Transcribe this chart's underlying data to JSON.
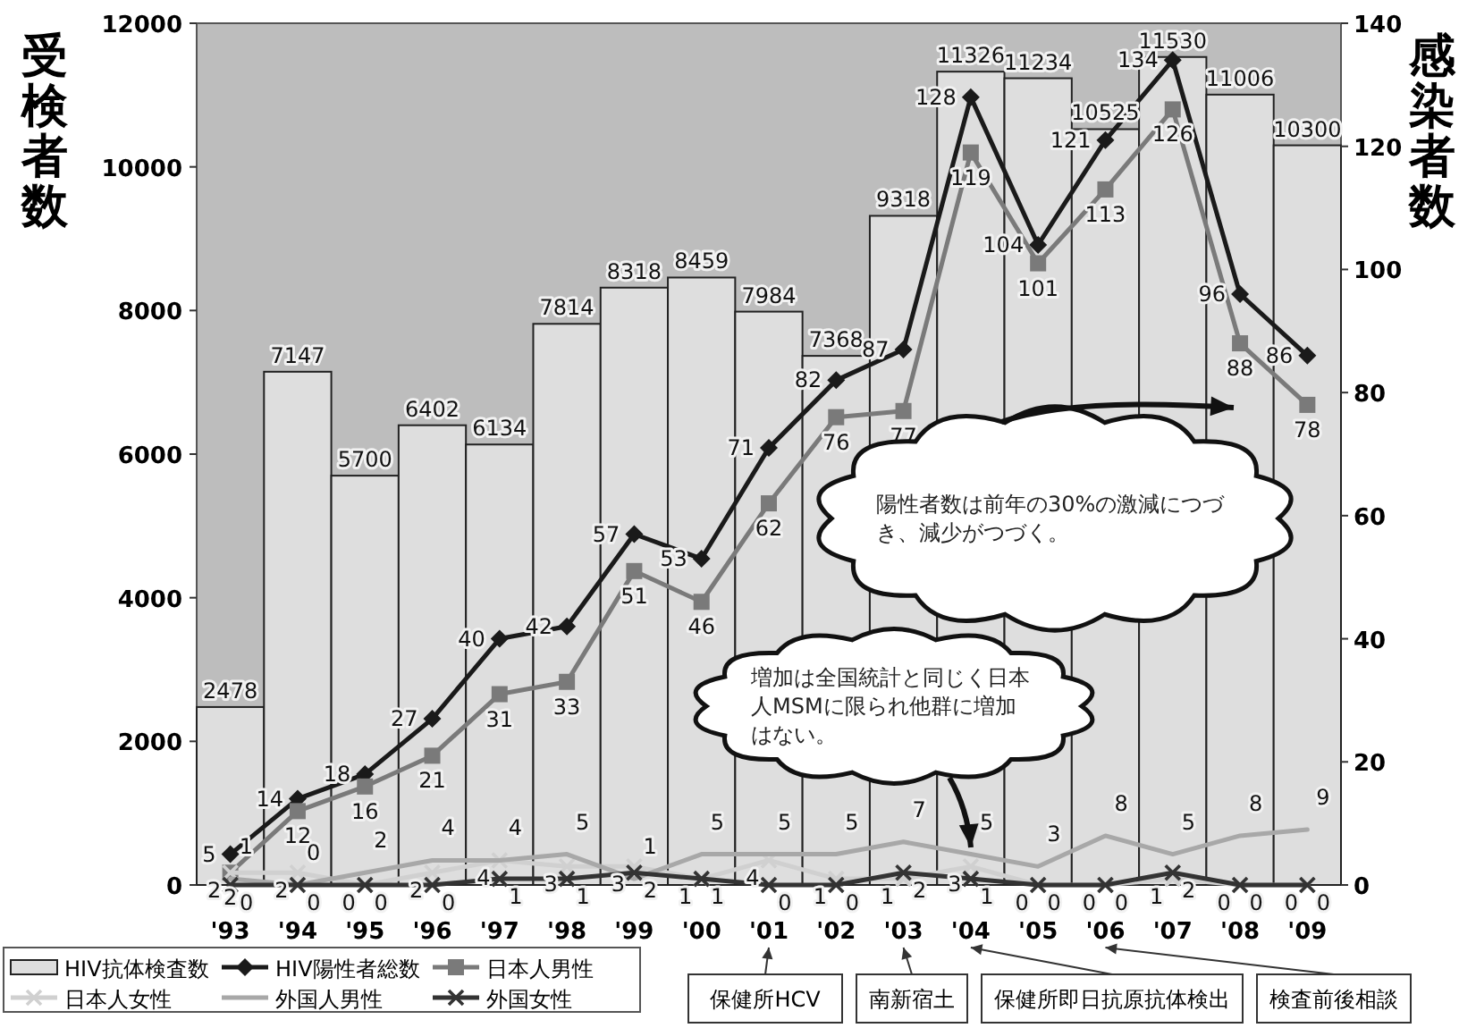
{
  "chart_data": {
    "type": "bar",
    "categories": [
      "'93",
      "'94",
      "'95",
      "'96",
      "'97",
      "'98",
      "'99",
      "'00",
      "'01",
      "'02",
      "'03",
      "'04",
      "'05",
      "'06",
      "'07",
      "'08",
      "'09"
    ],
    "ylabel": "受検者数",
    "y2label": "感染者数",
    "ylim": [
      0,
      12000
    ],
    "yticks": [
      0,
      2000,
      4000,
      6000,
      8000,
      10000,
      12000
    ],
    "y2lim": [
      0,
      140
    ],
    "y2ticks": [
      0,
      20,
      40,
      60,
      80,
      100,
      120,
      140
    ],
    "grid": false,
    "legend": "bottom left",
    "data_labels": true,
    "line_style": "solid",
    "series": [
      {
        "name": "HIV抗体検査数",
        "color": "#dedede",
        "values": [
          2478,
          7147,
          5700,
          6402,
          6134,
          7814,
          8318,
          8459,
          7984,
          7368,
          9318,
          11326,
          11234,
          10525,
          11530,
          11006,
          10300
        ]
      },
      {
        "name": "HIV陽性者総数",
        "type": "line",
        "axis": "y2",
        "marker": "diamond",
        "color": "#1a1a1a",
        "values": [
          5,
          14,
          18,
          27,
          40,
          42,
          57,
          53,
          71,
          82,
          87,
          128,
          104,
          121,
          134,
          96,
          86
        ]
      },
      {
        "name": "日本人男性",
        "type": "line",
        "axis": "y2",
        "marker": "square",
        "color": "#7a7a7a",
        "values": [
          2,
          12,
          16,
          21,
          31,
          33,
          51,
          46,
          62,
          76,
          77,
          119,
          101,
          113,
          126,
          88,
          78
        ]
      },
      {
        "name": "日本人女性",
        "type": "line",
        "axis": "y2",
        "marker": "cross",
        "color": "#d0d0d0",
        "values": [
          2,
          2,
          0,
          2,
          4,
          3,
          3,
          1,
          4,
          1,
          1,
          3,
          0,
          0,
          1,
          0,
          0
        ]
      },
      {
        "name": "外国人男性",
        "type": "line",
        "axis": "y2",
        "marker": "none",
        "color": "#a8a8a8",
        "values": [
          1,
          0,
          2,
          4,
          4,
          5,
          1,
          5,
          5,
          5,
          7,
          5,
          3,
          8,
          5,
          8,
          9
        ]
      },
      {
        "name": "外国女性",
        "type": "line",
        "axis": "y2",
        "marker": "cross",
        "color": "#333333",
        "values": [
          0,
          0,
          0,
          0,
          1,
          1,
          2,
          1,
          0,
          0,
          2,
          1,
          0,
          0,
          2,
          0,
          0
        ]
      }
    ],
    "annotations": [
      "陽性者数は前年の30%の激減につづき、減少がつづく。",
      "増加は全国統計と同じく日本人MSMに限られ他群に増加はない。",
      {
        "text": "保健所HCV",
        "x": "'01"
      },
      {
        "text": "南新宿土",
        "x": "'03"
      },
      {
        "text": "保健所即日抗原抗体検出",
        "x": "'04"
      },
      {
        "text": "検査前後相談",
        "x": "'06"
      }
    ]
  }
}
